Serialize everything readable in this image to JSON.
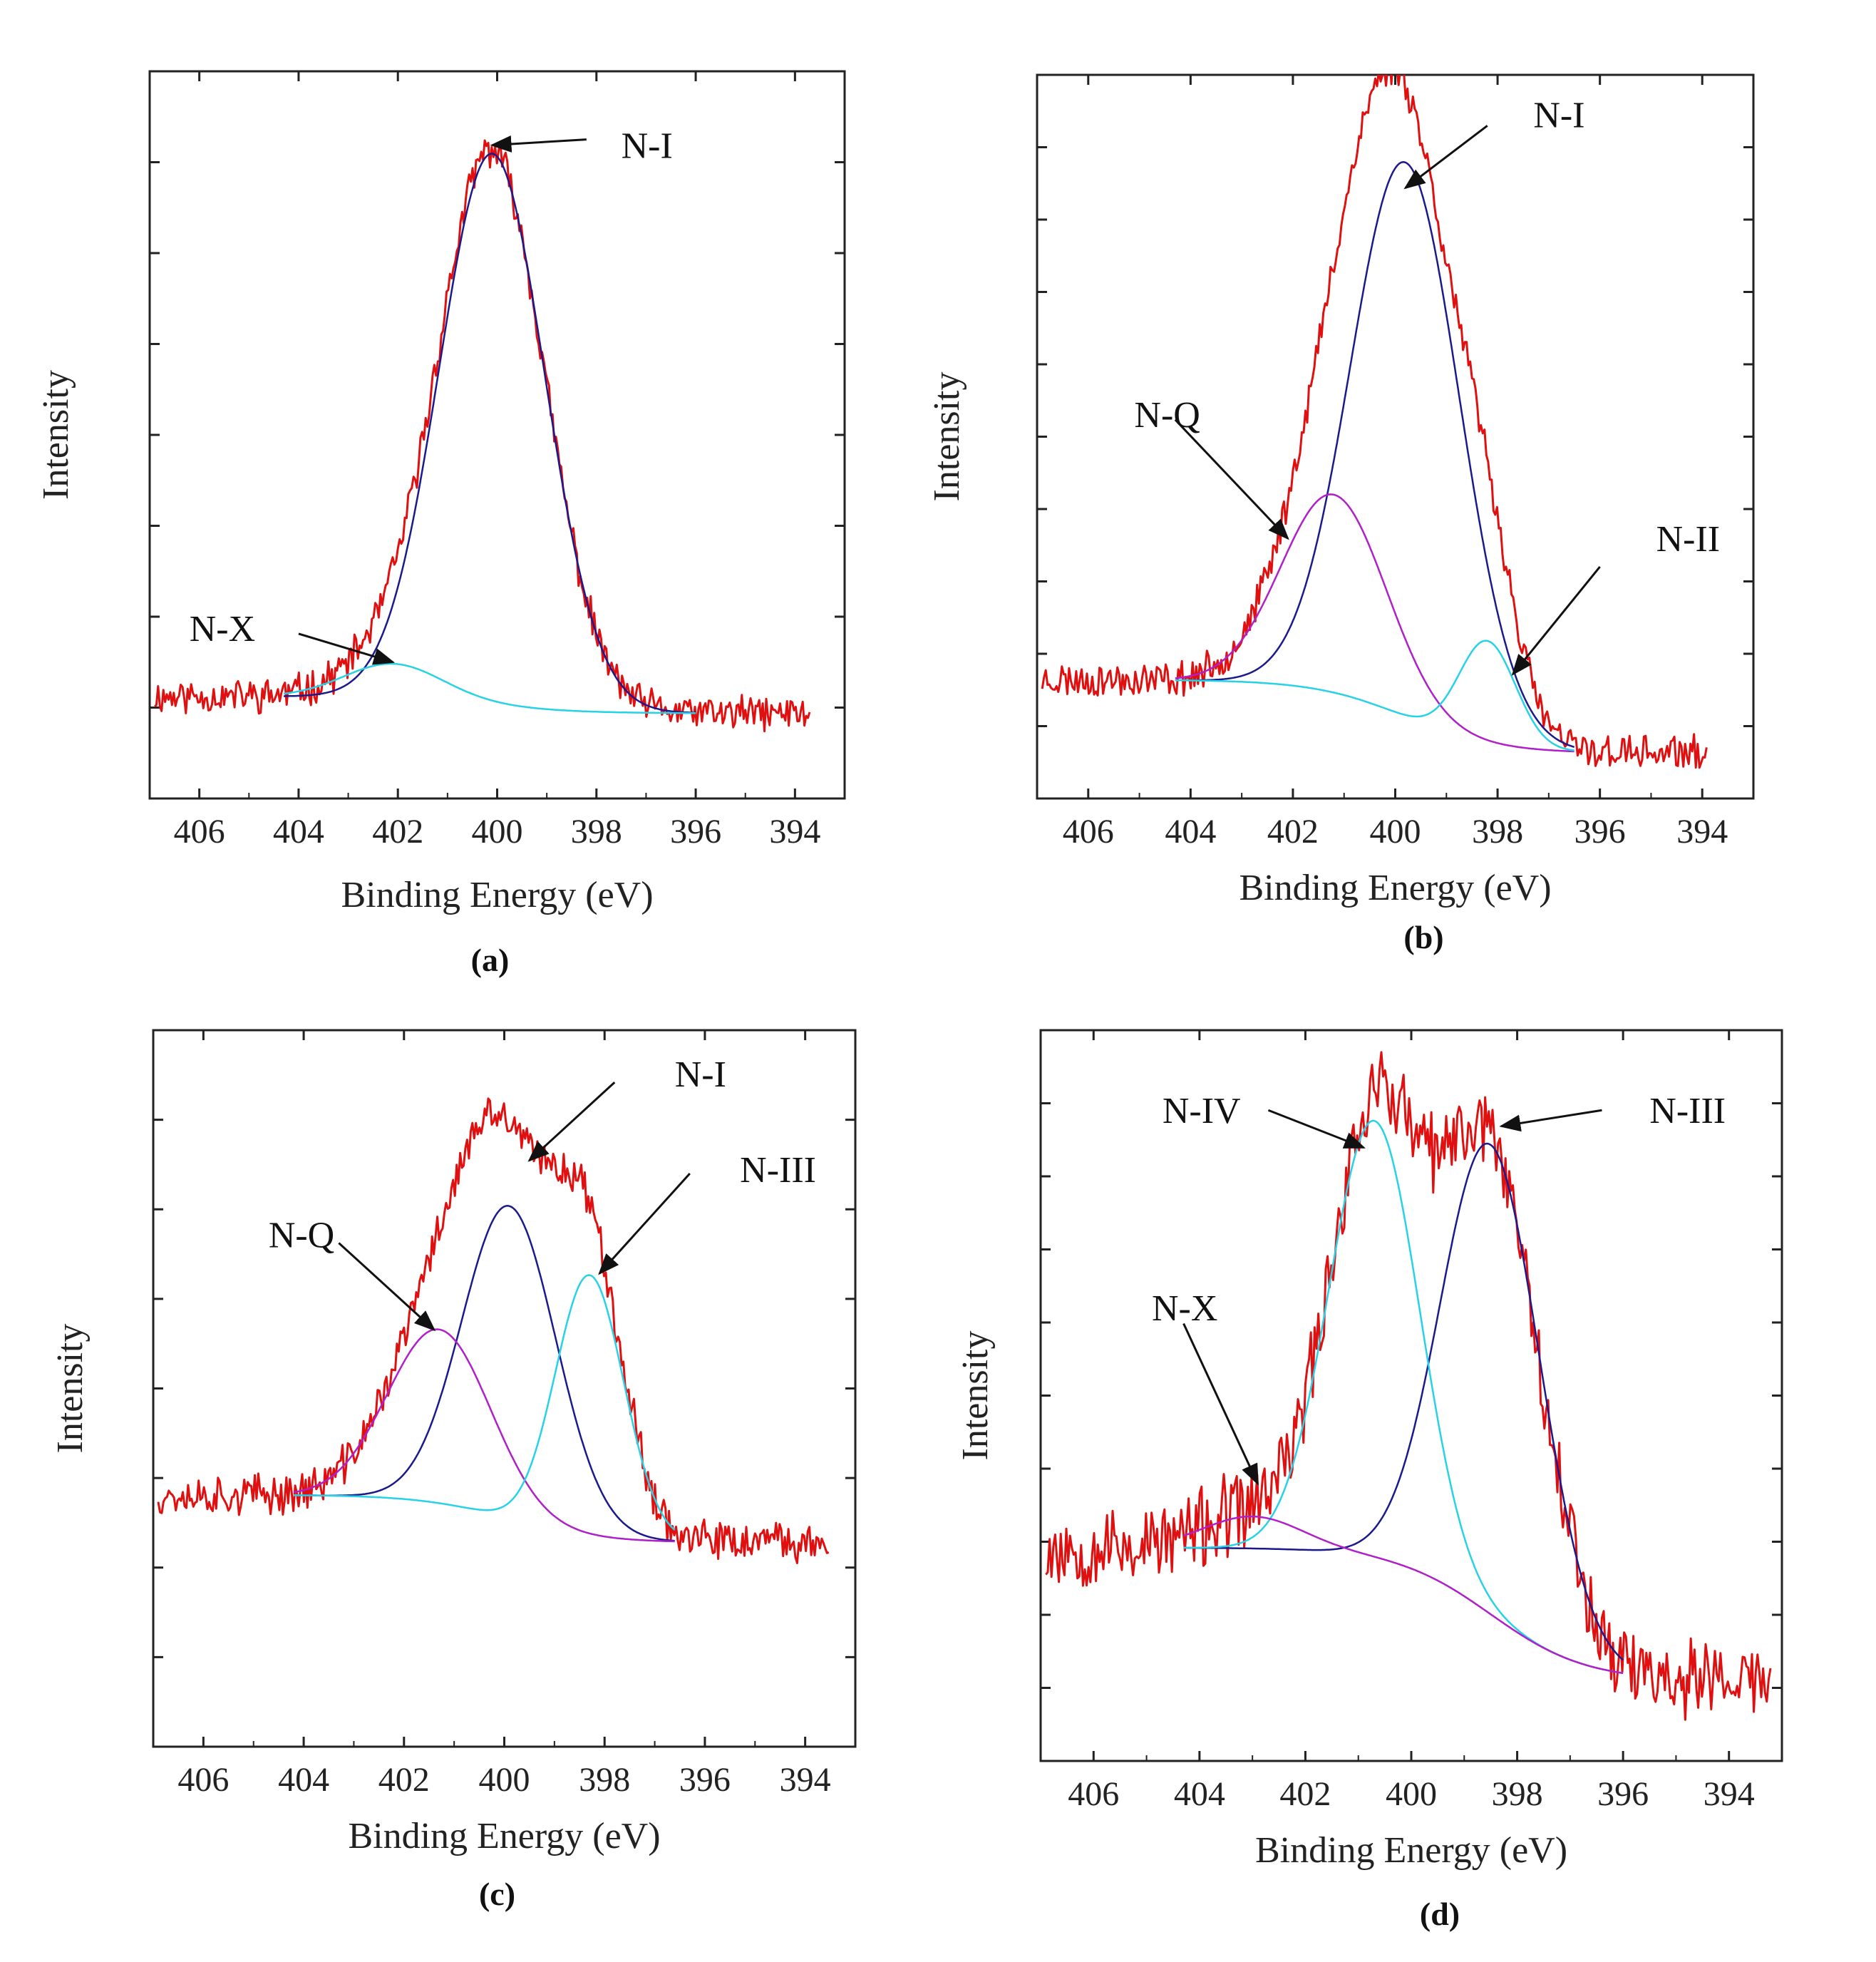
{
  "figure": {
    "colors": {
      "raw": "#e01010",
      "fit_blue": "#1a1a8c",
      "fit_cyan": "#28d2e6",
      "fit_magenta": "#b020c8",
      "axis": "#222222",
      "arrow": "#111111"
    }
  },
  "chart_data": [
    {
      "type": "line",
      "panel_label": "(a)",
      "xlabel": "Binding Energy (eV)",
      "ylabel": "Intensity",
      "x_ticks": [
        "406",
        "404",
        "402",
        "400",
        "398",
        "396",
        "394"
      ],
      "x_tick_values": [
        406,
        404,
        402,
        400,
        398,
        396,
        394
      ],
      "xlim": [
        407,
        393
      ],
      "x_reversed": true,
      "y_tick_count": 7,
      "ylim": [
        -0.15,
        1.13
      ],
      "raw": {
        "color": "#e01010",
        "xrange": [
          406.9,
          393.7
        ],
        "noise": 0.012,
        "seed": 11,
        "baseline": [
          0.03,
          0.0
        ]
      },
      "components": [
        {
          "label": "N-I",
          "color": "#1a1a8c",
          "center": 400.1,
          "fwhm": 2.5,
          "height": 0.97,
          "range": [
            404.3,
            396.0
          ],
          "baseline": [
            0.03,
            0.0
          ]
        },
        {
          "label": "N-X",
          "color": "#28d2e6",
          "center": 402.1,
          "fwhm": 2.3,
          "height": 0.06,
          "range": [
            404.3,
            396.0
          ],
          "baseline": [
            0.03,
            0.0
          ]
        }
      ],
      "annotations": [
        {
          "text": "N-I",
          "tip": [
            400.1,
            1.0
          ],
          "tail": [
            398.2,
            1.01
          ],
          "text_at": [
            397.5,
            1.0
          ]
        },
        {
          "text": "N-X",
          "tip": [
            402.1,
            0.09
          ],
          "tail": [
            404.0,
            0.14
          ],
          "text_at": [
            406.2,
            0.15
          ]
        }
      ]
    },
    {
      "type": "line",
      "panel_label": "(b)",
      "xlabel": "Binding Energy (eV)",
      "ylabel": "Intensity",
      "x_ticks": [
        "406",
        "404",
        "402",
        "400",
        "398",
        "396",
        "394"
      ],
      "x_tick_values": [
        406,
        404,
        402,
        400,
        398,
        396,
        394
      ],
      "xlim": [
        407,
        393
      ],
      "x_reversed": true,
      "y_tick_count": 9,
      "ylim": [
        -0.08,
        1.2
      ],
      "raw": {
        "color": "#e01010",
        "xrange": [
          406.9,
          393.9
        ],
        "noise": 0.012,
        "seed": 23,
        "baseline": [
          0.13,
          0.0
        ]
      },
      "components": [
        {
          "label": "N-I",
          "color": "#1a1a8c",
          "center": 399.8,
          "fwhm": 2.5,
          "height": 0.98,
          "range": [
            404.3,
            396.5
          ],
          "baseline": [
            0.13,
            0.0
          ]
        },
        {
          "label": "N-Q",
          "color": "#b020c8",
          "center": 401.2,
          "fwhm": 2.4,
          "height": 0.35,
          "range": [
            404.3,
            396.5
          ],
          "baseline": [
            0.13,
            0.0
          ]
        },
        {
          "label": "N-II",
          "color": "#28d2e6",
          "center": 398.2,
          "fwhm": 1.3,
          "height": 0.18,
          "range": [
            404.3,
            396.5
          ],
          "baseline": [
            0.13,
            0.0
          ]
        }
      ],
      "annotations": [
        {
          "text": "N-I",
          "tip": [
            399.8,
            1.0
          ],
          "tail": [
            398.2,
            1.11
          ],
          "text_at": [
            397.3,
            1.13
          ]
        },
        {
          "text": "N-Q",
          "tip": [
            402.1,
            0.38
          ],
          "tail": [
            404.3,
            0.59
          ],
          "text_at": [
            405.1,
            0.6
          ]
        },
        {
          "text": "N-II",
          "tip": [
            397.7,
            0.14
          ],
          "tail": [
            396.0,
            0.33
          ],
          "text_at": [
            394.9,
            0.38
          ]
        }
      ]
    },
    {
      "type": "line",
      "panel_label": "(c)",
      "xlabel": "Binding Energy (eV)",
      "ylabel": "Intensity",
      "x_ticks": [
        "406",
        "404",
        "402",
        "400",
        "398",
        "396",
        "394"
      ],
      "x_tick_values": [
        406,
        404,
        402,
        400,
        398,
        396,
        394
      ],
      "xlim": [
        407,
        393
      ],
      "x_reversed": true,
      "y_tick_count": 7,
      "ylim": [
        -0.55,
        1.1
      ],
      "raw": {
        "color": "#e01010",
        "xrange": [
          406.9,
          393.5
        ],
        "noise": 0.018,
        "seed": 37,
        "baseline": [
          0.03,
          -0.08
        ]
      },
      "components": [
        {
          "label": "N-I",
          "color": "#1a1a8c",
          "center": 399.9,
          "fwhm": 2.2,
          "height": 0.72,
          "range": [
            404.2,
            396.6
          ],
          "baseline": [
            0.03,
            -0.08
          ]
        },
        {
          "label": "N-Q",
          "color": "#b020c8",
          "center": 401.3,
          "fwhm": 2.4,
          "height": 0.4,
          "range": [
            404.2,
            396.6
          ],
          "baseline": [
            0.03,
            -0.08
          ]
        },
        {
          "label": "N-III",
          "color": "#28d2e6",
          "center": 398.3,
          "fwhm": 1.6,
          "height": 0.6,
          "range": [
            404.2,
            396.6
          ],
          "baseline": [
            0.03,
            -0.08
          ]
        }
      ],
      "annotations": [
        {
          "text": "N-I",
          "tip": [
            399.5,
            0.8
          ],
          "tail": [
            397.8,
            0.98
          ],
          "text_at": [
            396.6,
            1.0
          ]
        },
        {
          "text": "N-Q",
          "tip": [
            401.4,
            0.41
          ],
          "tail": [
            403.3,
            0.61
          ],
          "text_at": [
            404.7,
            0.63
          ]
        },
        {
          "text": "N-III",
          "tip": [
            398.1,
            0.54
          ],
          "tail": [
            396.3,
            0.77
          ],
          "text_at": [
            395.3,
            0.78
          ]
        }
      ]
    },
    {
      "type": "line",
      "panel_label": "(d)",
      "xlabel": "Binding Energy (eV)",
      "ylabel": "Intensity",
      "x_ticks": [
        "406",
        "404",
        "402",
        "400",
        "398",
        "396",
        "394"
      ],
      "x_tick_values": [
        406,
        404,
        402,
        400,
        398,
        396,
        394
      ],
      "xlim": [
        407,
        393
      ],
      "x_reversed": true,
      "y_tick_count": 9,
      "ylim": [
        -0.15,
        1.22
      ],
      "raw": {
        "color": "#e01010",
        "xrange": [
          406.9,
          393.2
        ],
        "noise": 0.03,
        "seed": 53,
        "baseline": [
          0.25,
          0.0
        ]
      },
      "components": [
        {
          "label": "N-III",
          "color": "#1a1a8c",
          "center": 398.5,
          "fwhm": 2.2,
          "height": 0.88,
          "range": [
            404.3,
            396.0
          ],
          "baseline": [
            0.25,
            0.0
          ]
        },
        {
          "label": "N-IV",
          "color": "#28d2e6",
          "center": 400.7,
          "fwhm": 2.0,
          "height": 0.82,
          "range": [
            404.3,
            396.0
          ],
          "baseline": [
            0.25,
            0.0
          ]
        },
        {
          "label": "N-X",
          "color": "#b020c8",
          "center": 403.0,
          "fwhm": 2.2,
          "height": 0.06,
          "range": [
            404.3,
            396.0
          ],
          "baseline": [
            0.25,
            0.0
          ]
        }
      ],
      "annotations": [
        {
          "text": "N-III",
          "tip": [
            398.3,
            1.04
          ],
          "tail": [
            396.4,
            1.07
          ],
          "text_at": [
            395.5,
            1.07
          ]
        },
        {
          "text": "N-IV",
          "tip": [
            400.9,
            1.0
          ],
          "tail": [
            402.7,
            1.07
          ],
          "text_at": [
            404.7,
            1.07
          ]
        },
        {
          "text": "N-X",
          "tip": [
            402.9,
            0.37
          ],
          "tail": [
            404.3,
            0.67
          ],
          "text_at": [
            404.9,
            0.7
          ]
        }
      ]
    }
  ]
}
